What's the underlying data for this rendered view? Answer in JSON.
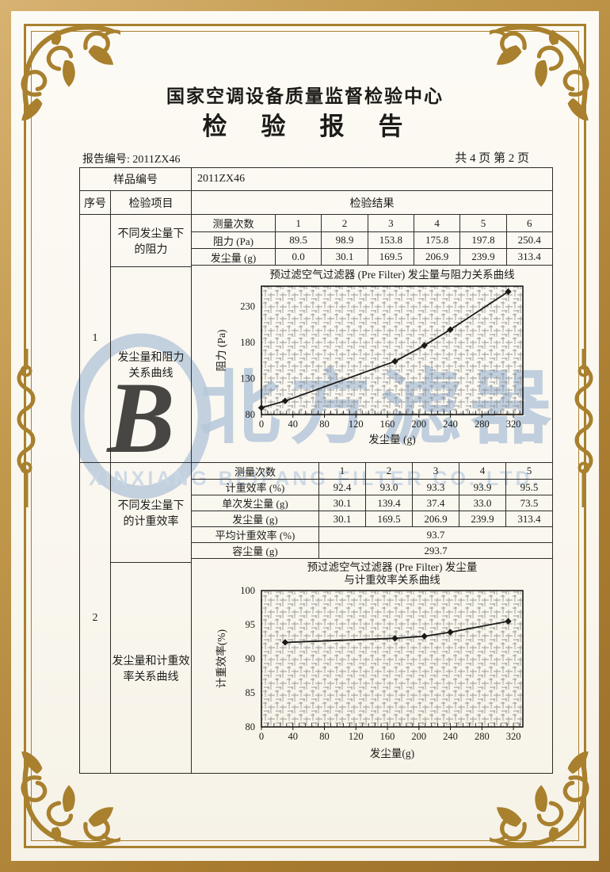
{
  "header": {
    "organization": "国家空调设备质量监督检验中心",
    "title": "检　验　报　告"
  },
  "meta": {
    "report_no": "报告编号: 2011ZX46",
    "page_info": "共 4 页 第 2 页"
  },
  "table": {
    "sample_label": "样品编号",
    "sample_value": "2011ZX46",
    "col_seq": "序号",
    "col_item": "检验项目",
    "col_result": "检验结果",
    "section1": {
      "seq": "1",
      "item_label": "不同发尘量下\n的阻力",
      "curve_label": "发尘量和阻力\n关系曲线",
      "measurements": {
        "rows": [
          {
            "label": "测量次数",
            "values": [
              "1",
              "2",
              "3",
              "4",
              "5",
              "6"
            ]
          },
          {
            "label": "阻力 (Pa)",
            "values": [
              "89.5",
              "98.9",
              "153.8",
              "175.8",
              "197.8",
              "250.4"
            ]
          },
          {
            "label": "发尘量 (g)",
            "values": [
              "0.0",
              "30.1",
              "169.5",
              "206.9",
              "239.9",
              "313.4"
            ]
          }
        ]
      }
    },
    "section2": {
      "seq": "2",
      "item_label": "不同发尘量下\n的计重效率",
      "curve_label": "发尘量和计重效\n率关系曲线",
      "measurements": {
        "rows": [
          {
            "label": "测量次数",
            "values": [
              "1",
              "2",
              "3",
              "4",
              "5"
            ]
          },
          {
            "label": "计重效率 (%)",
            "values": [
              "92.4",
              "93.0",
              "93.3",
              "93.9",
              "95.5"
            ]
          },
          {
            "label": "单次发尘量 (g)",
            "values": [
              "30.1",
              "139.4",
              "37.4",
              "33.0",
              "73.5"
            ]
          },
          {
            "label": "发尘量 (g)",
            "values": [
              "30.1",
              "169.5",
              "206.9",
              "239.9",
              "313.4"
            ]
          }
        ],
        "summary_rows": [
          {
            "label": "平均计重效率 (%)",
            "value": "93.7"
          },
          {
            "label": "容尘量 (g)",
            "value": "293.7"
          }
        ]
      }
    }
  },
  "watermark": {
    "logo_letter": "B",
    "brand_text": "北方滤器",
    "brand_subtext": "XINXIANG BEIFANG FILTER CO.,LTD.",
    "color": "#b6c8db"
  },
  "frame": {
    "gold_color": "#a8802e"
  },
  "chart_data": [
    {
      "type": "line",
      "title_lines": [
        "预过滤空气过滤器 (Pre Filter) 发尘量与阻力关系曲线"
      ],
      "xlabel": "发尘量 (g)",
      "ylabel": "阻力 (Pa)",
      "x": [
        0,
        30.1,
        169.5,
        206.9,
        239.9,
        313.4
      ],
      "y": [
        89.5,
        98.9,
        153.8,
        175.8,
        197.8,
        250.4
      ],
      "xlim": [
        0,
        332
      ],
      "ylim": [
        80,
        258
      ],
      "xticks": [
        0,
        40,
        80,
        120,
        160,
        200,
        240,
        280,
        320
      ],
      "yticks": [
        80,
        130,
        180,
        230
      ],
      "x_minor_step": 8,
      "grid": "dense-hatch",
      "marker": "diamond",
      "line_color": "#1b1a17",
      "legend": "none"
    },
    {
      "type": "line",
      "title_lines": [
        "预过滤空气过滤器 (Pre Filter) 发尘量",
        "与计重效率关系曲线"
      ],
      "xlabel": "发尘量(g)",
      "ylabel": "计重效率(%)",
      "x": [
        30.1,
        169.5,
        206.9,
        239.9,
        313.4
      ],
      "y": [
        92.4,
        93.0,
        93.3,
        93.9,
        95.5
      ],
      "xlim": [
        0,
        332
      ],
      "ylim": [
        80,
        100
      ],
      "xticks": [
        0,
        40,
        80,
        120,
        160,
        200,
        240,
        280,
        320
      ],
      "yticks": [
        80,
        85,
        90,
        95,
        100
      ],
      "x_minor_step": 8,
      "grid": "dense-hatch",
      "marker": "diamond",
      "line_color": "#1b1a17",
      "legend": "none"
    }
  ]
}
